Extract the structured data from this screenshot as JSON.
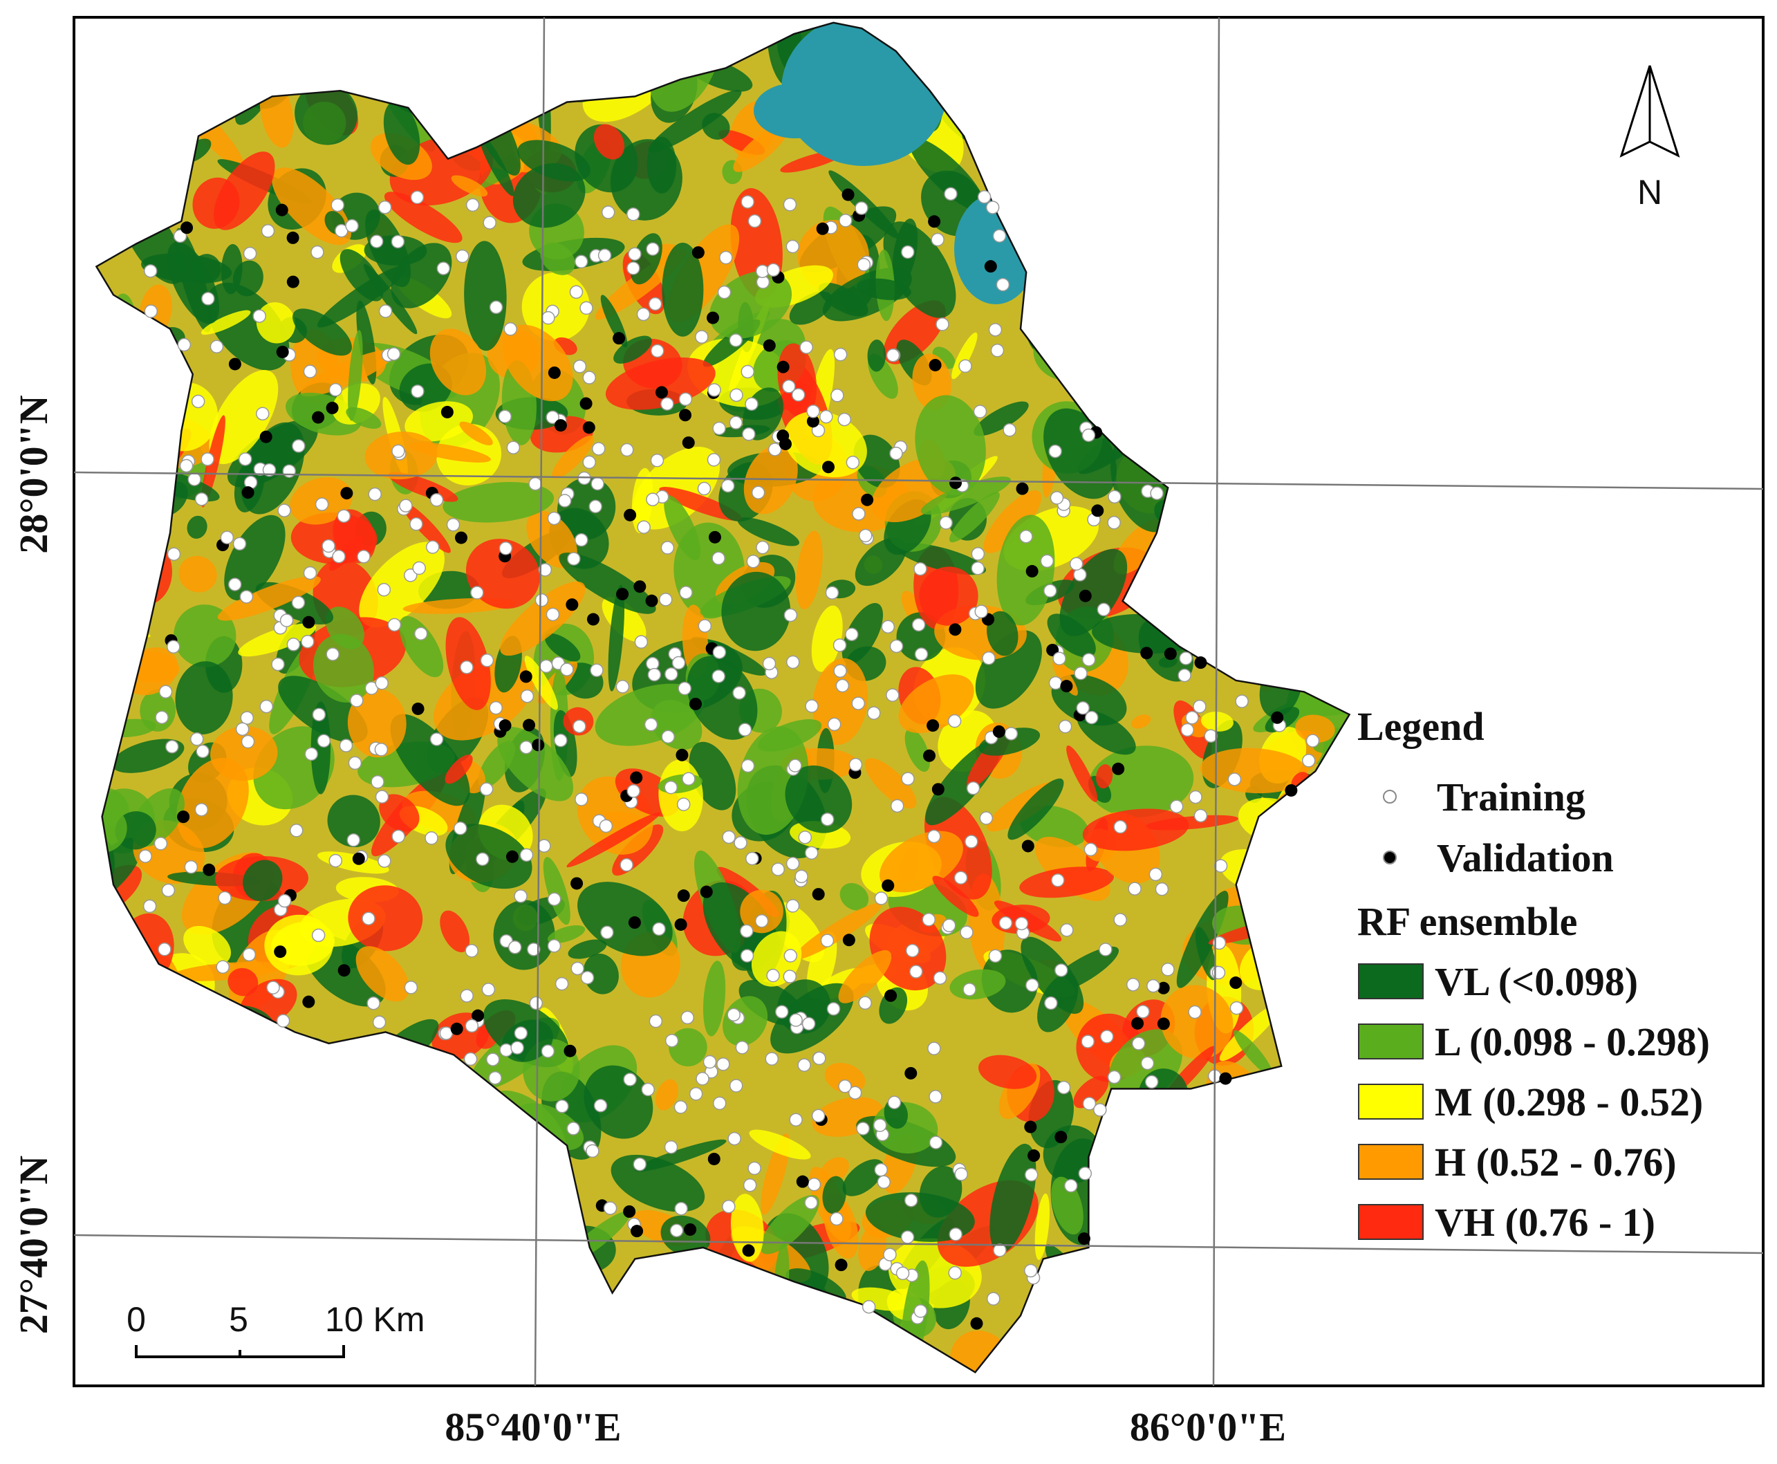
{
  "graticule": {
    "x_labels": [
      "85°40'0\"E",
      "86°0'0\"E"
    ],
    "y_labels": [
      "28°0'0\"N",
      "27°40'0\"N"
    ]
  },
  "north_arrow": {
    "label": "N"
  },
  "scale_bar": {
    "labels": [
      "0",
      "5",
      "10 Km"
    ]
  },
  "legend": {
    "title": "Legend",
    "points": [
      {
        "label": "Training",
        "color": "#ffffff"
      },
      {
        "label": "Validation",
        "color": "#000000"
      }
    ],
    "classes_title": "RF ensemble",
    "classes": [
      {
        "label": "VL (<0.098)",
        "color": "#0b6a1e"
      },
      {
        "label": "L (0.098 - 0.298)",
        "color": "#5aae1e"
      },
      {
        "label": "M (0.298 - 0.52)",
        "color": "#ffff00"
      },
      {
        "label": "H (0.52 - 0.76)",
        "color": "#ff9a00"
      },
      {
        "label": "VH (0.76 - 1)",
        "color": "#ff2a10"
      }
    ]
  }
}
